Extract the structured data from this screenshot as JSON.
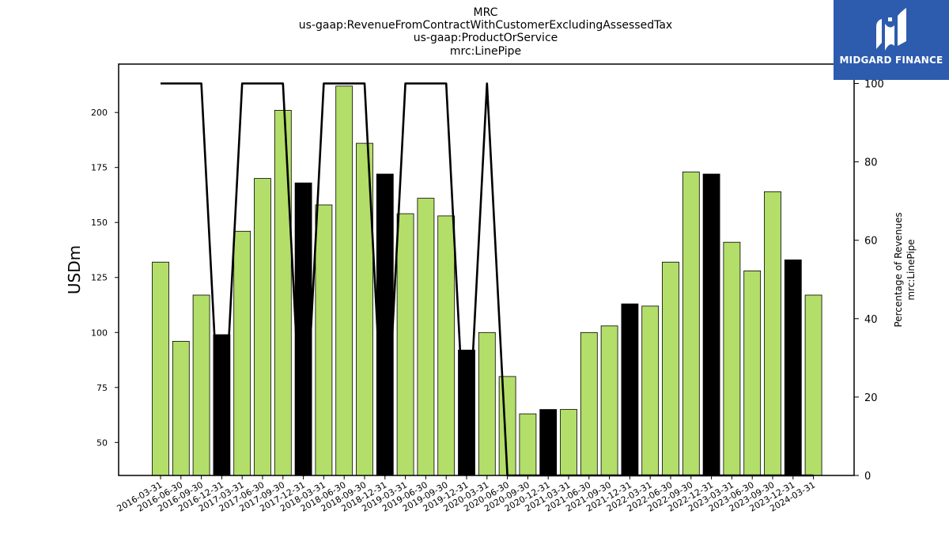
{
  "chart_data": {
    "type": "bar",
    "title_lines": [
      "MRC",
      "us-gaap:RevenueFromContractWithCustomerExcludingAssessedTax",
      "us-gaap:ProductOrService",
      "mrc:LinePipe"
    ],
    "ylabel": "USDm",
    "ylabel_right": [
      "Percentage of Revenues",
      "mrc:LinePipe"
    ],
    "categories": [
      "2016-03-31",
      "2016-06-30",
      "2016-09-30",
      "2016-12-31",
      "2017-03-31",
      "2017-06-30",
      "2017-09-30",
      "2017-12-31",
      "2018-03-31",
      "2018-06-30",
      "2018-09-30",
      "2018-12-31",
      "2019-03-31",
      "2019-06-30",
      "2019-09-30",
      "2019-12-31",
      "2020-03-31",
      "2020-06-30",
      "2020-09-30",
      "2020-12-31",
      "2021-03-31",
      "2021-06-30",
      "2021-09-30",
      "2021-12-31",
      "2022-03-31",
      "2022-06-30",
      "2022-09-30",
      "2022-12-31",
      "2023-03-31",
      "2023-06-30",
      "2023-09-30",
      "2023-12-31",
      "2024-03-31"
    ],
    "series": [
      {
        "values": [
          132,
          96,
          117,
          99,
          146,
          170,
          201,
          168,
          158,
          212,
          186,
          172,
          154,
          161,
          153,
          92,
          100,
          80,
          63,
          65,
          65,
          100,
          103,
          113,
          112,
          132,
          173,
          172,
          141,
          128,
          164,
          133,
          117
        ],
        "highlight": [
          false,
          false,
          false,
          true,
          false,
          false,
          false,
          true,
          false,
          false,
          false,
          true,
          false,
          false,
          false,
          true,
          false,
          false,
          false,
          true,
          false,
          false,
          false,
          true,
          false,
          false,
          false,
          true,
          false,
          false,
          false,
          true,
          false
        ],
        "color": "#b3de69",
        "highlight_color": "#000000"
      },
      {
        "axis": "right",
        "type": "line",
        "values": [
          100,
          100,
          100,
          0,
          100,
          100,
          100,
          0,
          100,
          100,
          100,
          0,
          100,
          100,
          100,
          0,
          100,
          0,
          0,
          0,
          0,
          0,
          0,
          0,
          0,
          0,
          0,
          0,
          0,
          0,
          0,
          0,
          0
        ],
        "color": "#000000"
      }
    ],
    "ylim": [
      35,
      222
    ],
    "yticks": [
      50,
      75,
      100,
      125,
      150,
      175,
      200
    ],
    "ylim_right": [
      0,
      100
    ],
    "yticks_right": [
      0,
      20,
      40,
      60,
      80,
      100
    ],
    "grid": false,
    "legend": "none"
  },
  "logo": {
    "text": "MIDGARD FINANCE",
    "icon": "midgard-logo-icon",
    "background": "#2d5cae"
  }
}
